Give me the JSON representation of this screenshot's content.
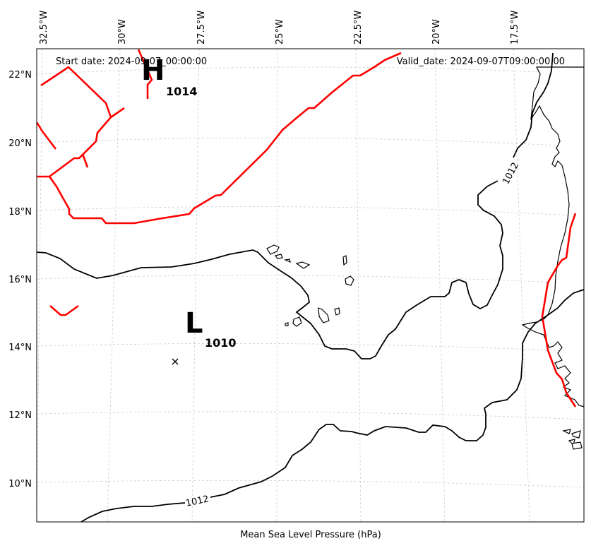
{
  "map": {
    "start_date": "Start date: 2024-09-07_00:00:00",
    "valid_date": "Valid_date: 2024-09-07T09:00:00.00",
    "footer_label": "Mean Sea Level Pressure (hPa)",
    "lon_labels": [
      "32.5°W",
      "30°W",
      "27.5°W",
      "25°W",
      "22.5°W",
      "20°W",
      "17.5°W"
    ],
    "lat_labels": [
      "22°N",
      "20°N",
      "18°N",
      "16°N",
      "14°N",
      "12°N",
      "10°N"
    ],
    "high_center": {
      "letter": "H",
      "value": "1014"
    },
    "low_center": {
      "letter": "L",
      "value": "1010"
    },
    "contour_labels": [
      "1012",
      "1012"
    ],
    "colors": {
      "isobar": "#000000",
      "front": "#ff0000",
      "grid": "#cccccc"
    }
  }
}
